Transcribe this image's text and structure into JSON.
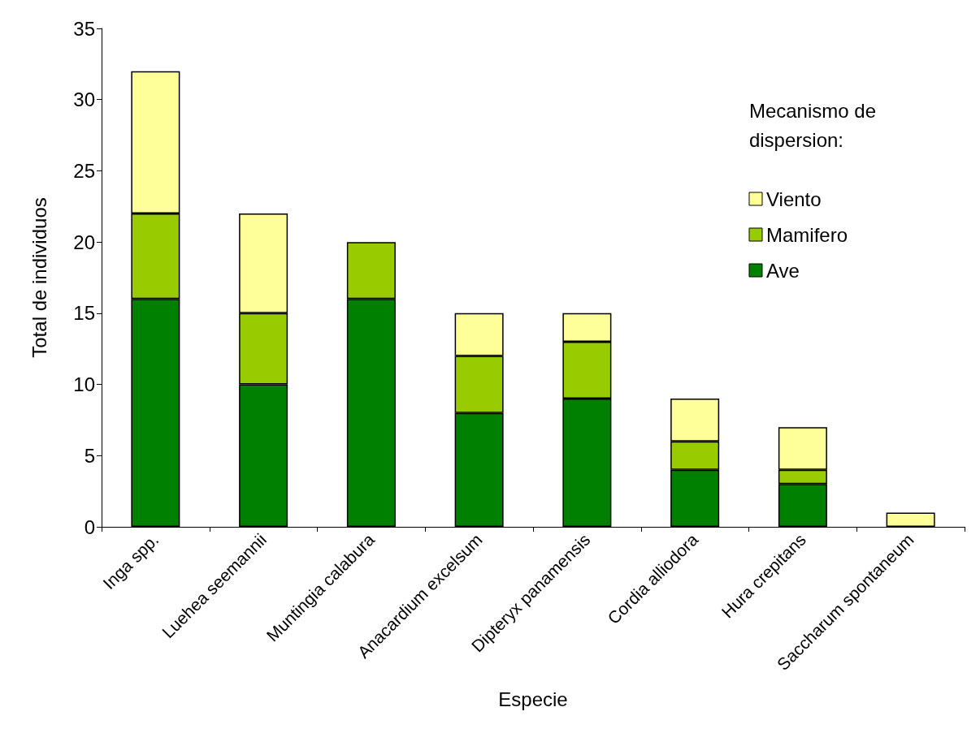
{
  "chart_data": {
    "type": "bar",
    "stacked": true,
    "xlabel": "Especie",
    "ylabel": "Total de individuos",
    "legend_title": "Mecanismo de dispersion:",
    "legend": "top right",
    "grid": false,
    "categories": [
      "Inga spp.",
      "Luehea seemannii",
      "Muntingia calabura",
      "Anacardium excelsum",
      "Dipteryx panamensis",
      "Cordia alliodora",
      "Hura crepitans",
      "Saccharum spontaneum"
    ],
    "ylim": [
      0,
      35
    ],
    "yticks": [
      0,
      5,
      10,
      15,
      20,
      25,
      30,
      35
    ],
    "series": [
      {
        "name": "Ave",
        "color": "#008000",
        "values": [
          16,
          10,
          16,
          8,
          9,
          4,
          3,
          0
        ]
      },
      {
        "name": "Mamifero",
        "color": "#99cc00",
        "values": [
          6,
          5,
          4,
          4,
          4,
          2,
          1,
          0
        ]
      },
      {
        "name": "Viento",
        "color": "#ffff99",
        "values": [
          10,
          7,
          0,
          3,
          2,
          3,
          3,
          1
        ]
      }
    ]
  }
}
